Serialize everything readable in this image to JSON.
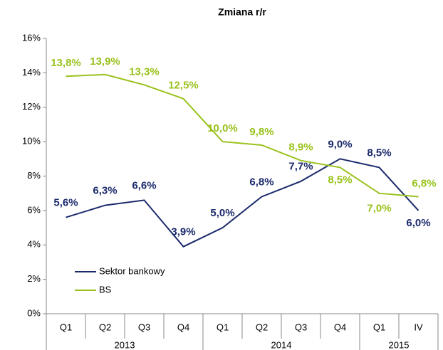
{
  "chart_data": {
    "type": "line",
    "title": "Zmiana r/r",
    "categories": [
      "Q1",
      "Q2",
      "Q3",
      "Q4",
      "Q1",
      "Q2",
      "Q3",
      "Q4",
      "Q1",
      "IV"
    ],
    "groups": [
      "2013",
      "2014",
      "2015"
    ],
    "series": [
      {
        "name": "Sektor bankowy",
        "color": "#1b2a6b",
        "values": [
          5.6,
          6.3,
          6.6,
          3.9,
          5.0,
          6.8,
          7.7,
          9.0,
          8.5,
          6.0
        ],
        "value_labels": [
          "5,6%",
          "6,3%",
          "6,6%",
          "3,9%",
          "5,0%",
          "6,8%",
          "7,7%",
          "9,0%",
          "8,5%",
          "6,0%"
        ]
      },
      {
        "name": "BS",
        "color": "#99c21c",
        "values": [
          13.8,
          13.9,
          13.3,
          12.5,
          10.0,
          9.8,
          8.9,
          8.5,
          7.0,
          6.8
        ],
        "value_labels": [
          "13,8%",
          "13,9%",
          "13,3%",
          "12,5%",
          "10,0%",
          "9,8%",
          "8,9%",
          "8,5%",
          "7,0%",
          "6,8%"
        ]
      }
    ],
    "ylim": [
      0,
      16
    ],
    "yticks": [
      {
        "value": 0,
        "label": "0%"
      },
      {
        "value": 2,
        "label": "2%"
      },
      {
        "value": 4,
        "label": "4%"
      },
      {
        "value": 6,
        "label": "6%"
      },
      {
        "value": 8,
        "label": "8%"
      },
      {
        "value": 10,
        "label": "10%"
      },
      {
        "value": 12,
        "label": "12%"
      },
      {
        "value": 14,
        "label": "14%"
      },
      {
        "value": 16,
        "label": "16%"
      }
    ],
    "legend": "lower left"
  }
}
